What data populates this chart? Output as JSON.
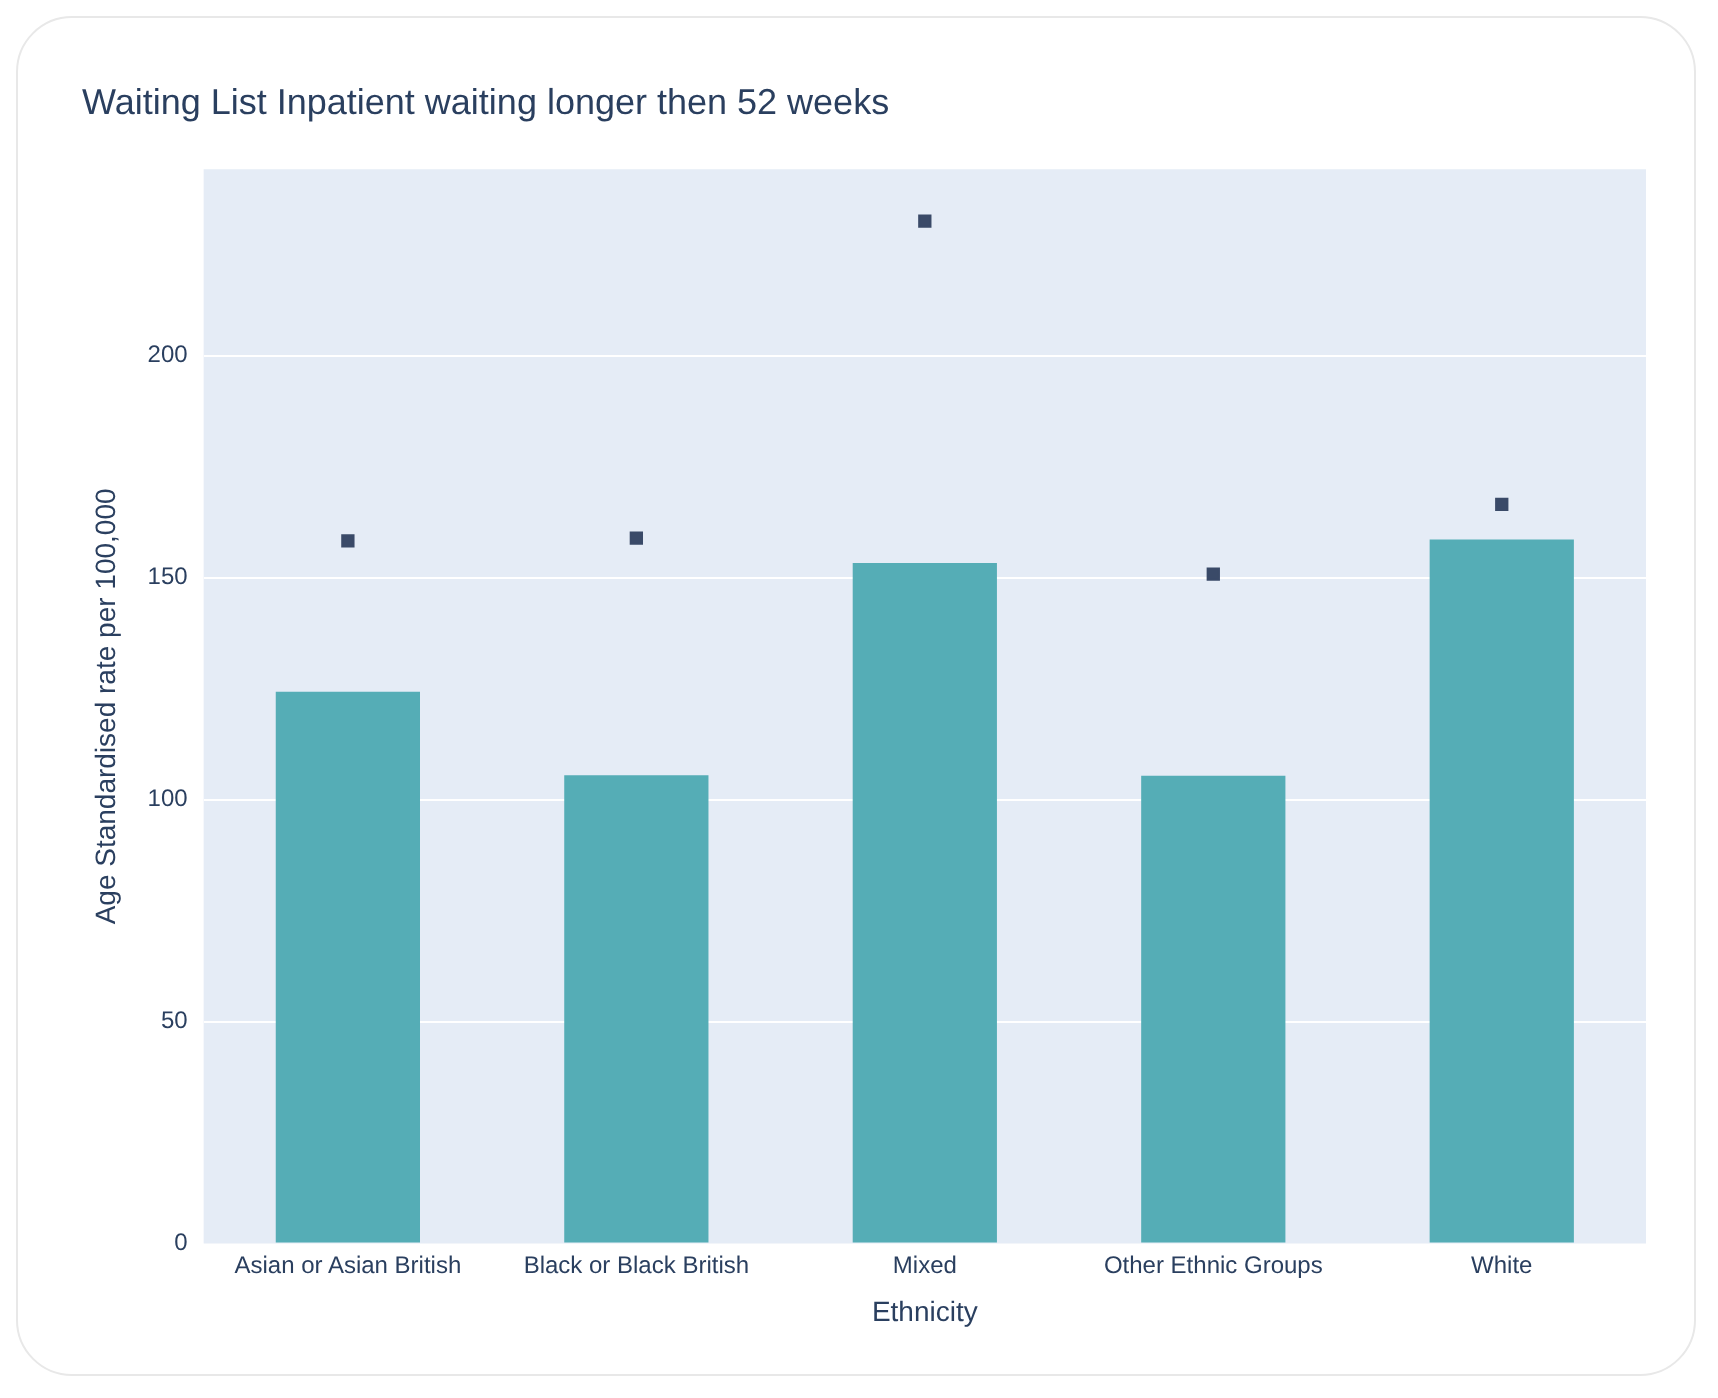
{
  "chart_data": {
    "type": "bar",
    "title": "Waiting List Inpatient waiting longer then 52 weeks",
    "xlabel": "Ethnicity",
    "ylabel": "Age Standardised rate per 100,000",
    "categories": [
      "Asian or Asian British",
      "Black or Black British",
      "Mixed",
      "Other Ethnic Groups",
      "White"
    ],
    "series": [
      {
        "color": "#55adb6",
        "values": [
          124.3,
          105.5,
          153.3,
          105.4,
          158.6
        ]
      },
      {
        "type": "scatter",
        "marker": "square",
        "color": "#3a4a68",
        "x": [
          "Asian or Asian British",
          "Black or Black British",
          "Mixed",
          "Other Ethnic Groups",
          "White"
        ],
        "values": [
          158.3,
          158.9,
          230.3,
          150.8,
          166.5
        ]
      }
    ],
    "ylim": [
      0,
      242
    ],
    "yticks": [
      0,
      50,
      100,
      150,
      200
    ],
    "grid": "y",
    "legend": false
  }
}
